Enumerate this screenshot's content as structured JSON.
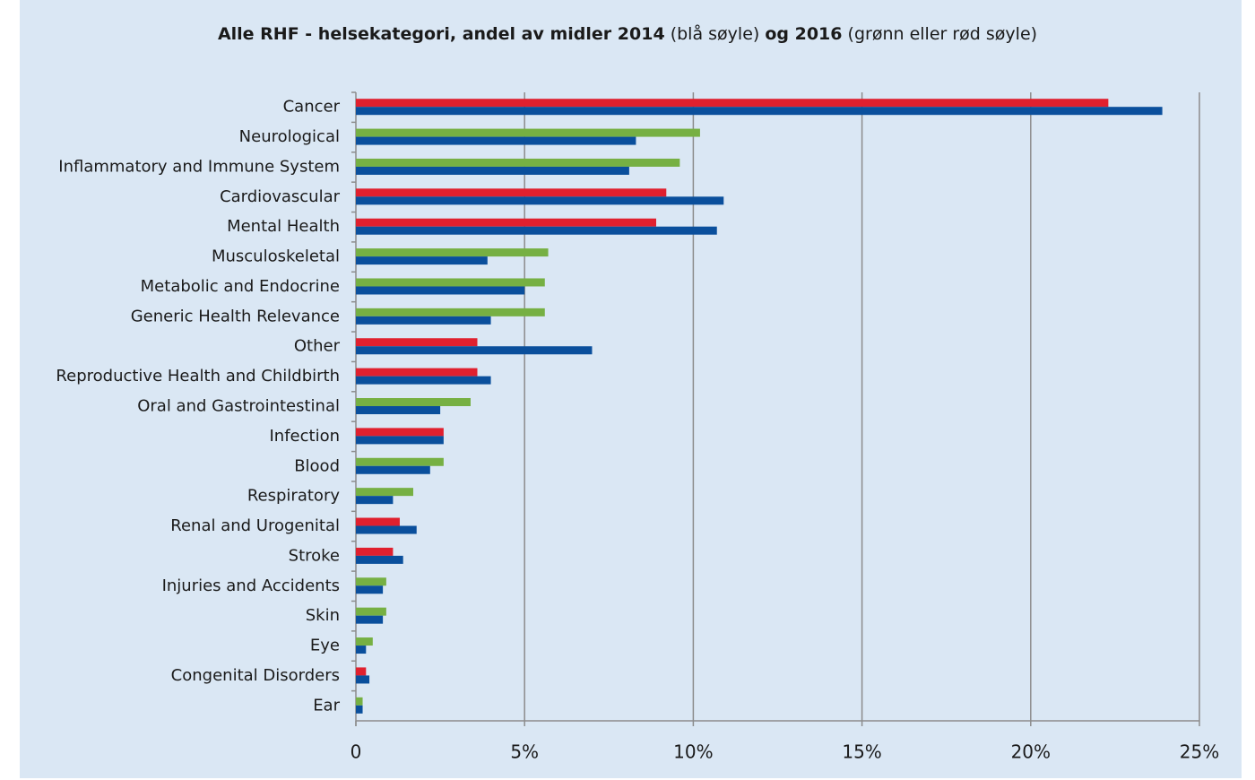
{
  "chart_data": {
    "type": "hbar",
    "title_parts": [
      {
        "text": "Alle RHF - helsekategori, andel av midler 2014",
        "bold": true
      },
      {
        "text": " (blå søyle) ",
        "bold": false
      },
      {
        "text": "og 2016",
        "bold": true
      },
      {
        "text": " (grønn eller rød søyle)",
        "bold": false
      }
    ],
    "categories": [
      "Cancer",
      "Neurological",
      "Inflammatory and Immune System",
      "Cardiovascular",
      "Mental Health",
      "Musculoskeletal",
      "Metabolic and Endocrine",
      "Generic Health Relevance",
      "Other",
      "Reproductive Health and Childbirth",
      "Oral and Gastrointestinal",
      "Infection",
      "Blood",
      "Respiratory",
      "Renal and Urogenital",
      "Stroke",
      "Injuries and Accidents",
      "Skin",
      "Eye",
      "Congenital Disorders",
      "Ear"
    ],
    "series": [
      {
        "values": [
          22.3,
          10.2,
          9.6,
          9.2,
          8.9,
          5.7,
          5.6,
          5.6,
          3.6,
          3.6,
          3.4,
          2.6,
          2.6,
          1.7,
          1.3,
          1.1,
          0.9,
          0.9,
          0.5,
          0.3,
          0.2
        ],
        "colors": [
          "#e0202e",
          "#76b043",
          "#76b043",
          "#e0202e",
          "#e0202e",
          "#76b043",
          "#76b043",
          "#76b043",
          "#e0202e",
          "#e0202e",
          "#76b043",
          "#e0202e",
          "#76b043",
          "#76b043",
          "#e0202e",
          "#e0202e",
          "#76b043",
          "#76b043",
          "#76b043",
          "#e0202e",
          "#76b043"
        ]
      },
      {
        "values": [
          23.9,
          8.3,
          8.1,
          10.9,
          10.7,
          3.9,
          5.0,
          4.0,
          7.0,
          4.0,
          2.5,
          2.6,
          2.2,
          1.1,
          1.8,
          1.4,
          0.8,
          0.8,
          0.3,
          0.4,
          0.2
        ],
        "color": "#0a4f9c"
      }
    ],
    "xlim": [
      0,
      25
    ],
    "xticks": [
      0,
      {
        "value": 5,
        "label": "5%"
      },
      {
        "value": 10,
        "label": "10%"
      },
      {
        "value": 15,
        "label": "15%"
      },
      {
        "value": 20,
        "label": "20%"
      },
      {
        "value": 25,
        "label": "25%"
      }
    ],
    "grid": true
  }
}
